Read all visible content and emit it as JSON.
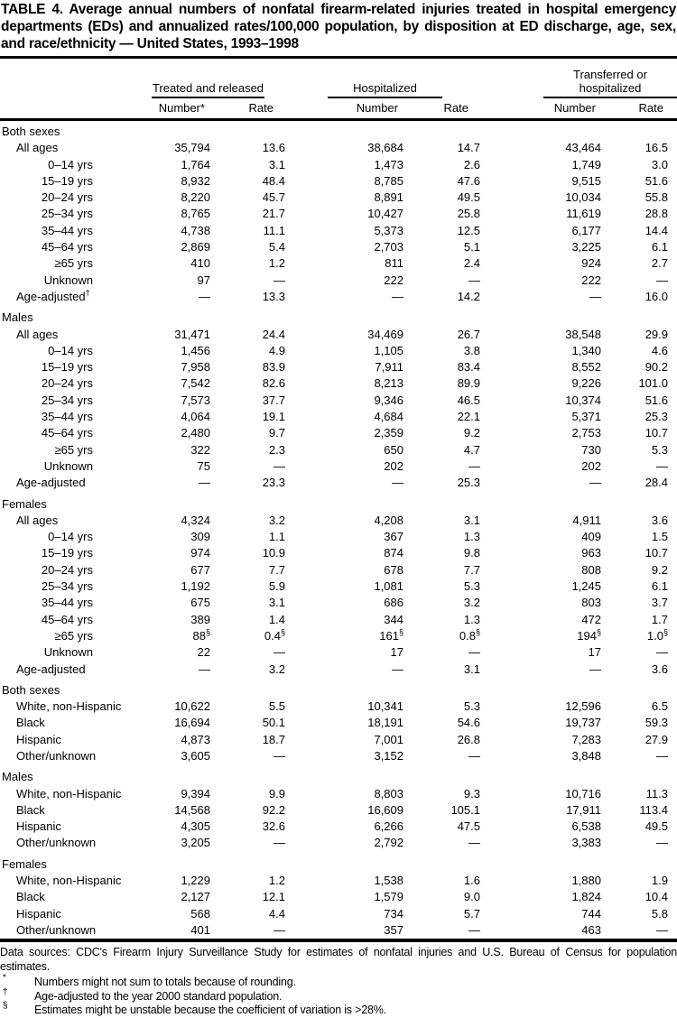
{
  "page": {
    "title": "TABLE 4. Average annual numbers of nonfatal firearm-related injuries treated in hospital emergency departments (EDs) and annualized rates/100,000 population, by disposition at ED discharge, age, sex, and race/ethnicity — United States, 1993–1998"
  },
  "colors": {
    "text": "#000000",
    "background": "#ffffff",
    "rule": "#000000"
  },
  "table": {
    "column_groups": [
      "Treated and released",
      "Hospitalized",
      "Transferred or hospitalized"
    ],
    "sub_headers": [
      "Number*",
      "Rate",
      "Number",
      "Rate",
      "Number",
      "Rate"
    ],
    "sections": [
      {
        "header": "Both sexes",
        "rows": [
          {
            "label": "All ages",
            "indent": 1,
            "values": [
              "35,794",
              "13.6",
              "38,684",
              "14.7",
              "43,464",
              "16.5"
            ]
          },
          {
            "label": "0–14 yrs",
            "indent": 2,
            "values": [
              "1,764",
              "3.1",
              "1,473",
              "2.6",
              "1,749",
              "3.0"
            ]
          },
          {
            "label": "15–19 yrs",
            "indent": 2,
            "values": [
              "8,932",
              "48.4",
              "8,785",
              "47.6",
              "9,515",
              "51.6"
            ]
          },
          {
            "label": "20–24 yrs",
            "indent": 2,
            "values": [
              "8,220",
              "45.7",
              "8,891",
              "49.5",
              "10,034",
              "55.8"
            ]
          },
          {
            "label": "25–34 yrs",
            "indent": 2,
            "values": [
              "8,765",
              "21.7",
              "10,427",
              "25.8",
              "11,619",
              "28.8"
            ]
          },
          {
            "label": "35–44 yrs",
            "indent": 2,
            "values": [
              "4,738",
              "11.1",
              "5,373",
              "12.5",
              "6,177",
              "14.4"
            ]
          },
          {
            "label": "45–64 yrs",
            "indent": 2,
            "values": [
              "2,869",
              "5.4",
              "2,703",
              "5.1",
              "3,225",
              "6.1"
            ]
          },
          {
            "label": "≥65 yrs",
            "indent": 2,
            "values": [
              "410",
              "1.2",
              "811",
              "2.4",
              "924",
              "2.7"
            ]
          },
          {
            "label": "Unknown",
            "indent": 2,
            "values": [
              "97",
              "—",
              "222",
              "—",
              "222",
              "—"
            ]
          },
          {
            "label": "Age-adjusted",
            "label_sup": "†",
            "indent": 1,
            "values": [
              "—",
              "13.3",
              "—",
              "14.2",
              "—",
              "16.0"
            ]
          }
        ]
      },
      {
        "header": "Males",
        "rows": [
          {
            "label": "All ages",
            "indent": 1,
            "values": [
              "31,471",
              "24.4",
              "34,469",
              "26.7",
              "38,548",
              "29.9"
            ]
          },
          {
            "label": "0–14 yrs",
            "indent": 2,
            "values": [
              "1,456",
              "4.9",
              "1,105",
              "3.8",
              "1,340",
              "4.6"
            ]
          },
          {
            "label": "15–19 yrs",
            "indent": 2,
            "values": [
              "7,958",
              "83.9",
              "7,911",
              "83.4",
              "8,552",
              "90.2"
            ]
          },
          {
            "label": "20–24 yrs",
            "indent": 2,
            "values": [
              "7,542",
              "82.6",
              "8,213",
              "89.9",
              "9,226",
              "101.0"
            ]
          },
          {
            "label": "25–34 yrs",
            "indent": 2,
            "values": [
              "7,573",
              "37.7",
              "9,346",
              "46.5",
              "10,374",
              "51.6"
            ]
          },
          {
            "label": "35–44 yrs",
            "indent": 2,
            "values": [
              "4,064",
              "19.1",
              "4,684",
              "22.1",
              "5,371",
              "25.3"
            ]
          },
          {
            "label": "45–64 yrs",
            "indent": 2,
            "values": [
              "2,480",
              "9.7",
              "2,359",
              "9.2",
              "2,753",
              "10.7"
            ]
          },
          {
            "label": "≥65 yrs",
            "indent": 2,
            "values": [
              "322",
              "2.3",
              "650",
              "4.7",
              "730",
              "5.3"
            ]
          },
          {
            "label": "Unknown",
            "indent": 2,
            "values": [
              "75",
              "—",
              "202",
              "—",
              "202",
              "—"
            ]
          },
          {
            "label": "Age-adjusted",
            "indent": 1,
            "values": [
              "—",
              "23.3",
              "—",
              "25.3",
              "—",
              "28.4"
            ]
          }
        ]
      },
      {
        "header": "Females",
        "rows": [
          {
            "label": "All ages",
            "indent": 1,
            "values": [
              "4,324",
              "3.2",
              "4,208",
              "3.1",
              "4,911",
              "3.6"
            ]
          },
          {
            "label": "0–14 yrs",
            "indent": 2,
            "values": [
              "309",
              "1.1",
              "367",
              "1.3",
              "409",
              "1.5"
            ]
          },
          {
            "label": "15–19 yrs",
            "indent": 2,
            "values": [
              "974",
              "10.9",
              "874",
              "9.8",
              "963",
              "10.7"
            ]
          },
          {
            "label": "20–24 yrs",
            "indent": 2,
            "values": [
              "677",
              "7.7",
              "678",
              "7.7",
              "808",
              "9.2"
            ]
          },
          {
            "label": "25–34 yrs",
            "indent": 2,
            "values": [
              "1,192",
              "5.9",
              "1,081",
              "5.3",
              "1,245",
              "6.1"
            ]
          },
          {
            "label": "35–44 yrs",
            "indent": 2,
            "values": [
              "675",
              "3.1",
              "686",
              "3.2",
              "803",
              "3.7"
            ]
          },
          {
            "label": "45–64 yrs",
            "indent": 2,
            "values": [
              "389",
              "1.4",
              "344",
              "1.3",
              "472",
              "1.7"
            ]
          },
          {
            "label": "≥65 yrs",
            "indent": 2,
            "values": [
              "88§",
              "0.4§",
              "161§",
              "0.8§",
              "194§",
              "1.0§"
            ]
          },
          {
            "label": "Unknown",
            "indent": 2,
            "values": [
              "22",
              "—",
              "17",
              "—",
              "17",
              "—"
            ]
          },
          {
            "label": "Age-adjusted",
            "indent": 1,
            "values": [
              "—",
              "3.2",
              "—",
              "3.1",
              "—",
              "3.6"
            ]
          }
        ]
      },
      {
        "header": "Both sexes",
        "rows": [
          {
            "label": "White, non-Hispanic",
            "indent": 1,
            "values": [
              "10,622",
              "5.5",
              "10,341",
              "5.3",
              "12,596",
              "6.5"
            ]
          },
          {
            "label": "Black",
            "indent": 1,
            "values": [
              "16,694",
              "50.1",
              "18,191",
              "54.6",
              "19,737",
              "59.3"
            ]
          },
          {
            "label": "Hispanic",
            "indent": 1,
            "values": [
              "4,873",
              "18.7",
              "7,001",
              "26.8",
              "7,283",
              "27.9"
            ]
          },
          {
            "label": "Other/unknown",
            "indent": 1,
            "values": [
              "3,605",
              "—",
              "3,152",
              "—",
              "3,848",
              "—"
            ]
          }
        ]
      },
      {
        "header": "Males",
        "rows": [
          {
            "label": "White, non-Hispanic",
            "indent": 1,
            "values": [
              "9,394",
              "9.9",
              "8,803",
              "9.3",
              "10,716",
              "11.3"
            ]
          },
          {
            "label": "Black",
            "indent": 1,
            "values": [
              "14,568",
              "92.2",
              "16,609",
              "105.1",
              "17,911",
              "113.4"
            ]
          },
          {
            "label": "Hispanic",
            "indent": 1,
            "values": [
              "4,305",
              "32.6",
              "6,266",
              "47.5",
              "6,538",
              "49.5"
            ]
          },
          {
            "label": "Other/unknown",
            "indent": 1,
            "values": [
              "3,205",
              "—",
              "2,792",
              "—",
              "3,383",
              "—"
            ]
          }
        ]
      },
      {
        "header": "Females",
        "rows": [
          {
            "label": "White, non-Hispanic",
            "indent": 1,
            "values": [
              "1,229",
              "1.2",
              "1,538",
              "1.6",
              "1,880",
              "1.9"
            ]
          },
          {
            "label": "Black",
            "indent": 1,
            "values": [
              "2,127",
              "12.1",
              "1,579",
              "9.0",
              "1,824",
              "10.4"
            ]
          },
          {
            "label": "Hispanic",
            "indent": 1,
            "values": [
              "568",
              "4.4",
              "734",
              "5.7",
              "744",
              "5.8"
            ]
          },
          {
            "label": "Other/unknown",
            "indent": 1,
            "values": [
              "401",
              "—",
              "357",
              "—",
              "463",
              "—"
            ]
          }
        ]
      }
    ]
  },
  "footnotes": {
    "data_sources": "Data sources: CDC's Firearm Injury Surveillance Study for estimates of nonfatal injuries and U.S. Bureau of Census for population estimates.",
    "notes": [
      {
        "marker": "*",
        "text": "Numbers might not sum to totals because of rounding."
      },
      {
        "marker": "†",
        "text": "Age-adjusted to the year 2000 standard population."
      },
      {
        "marker": "§",
        "text": "Estimates might be unstable because the coefficient of variation is >28%."
      }
    ]
  }
}
